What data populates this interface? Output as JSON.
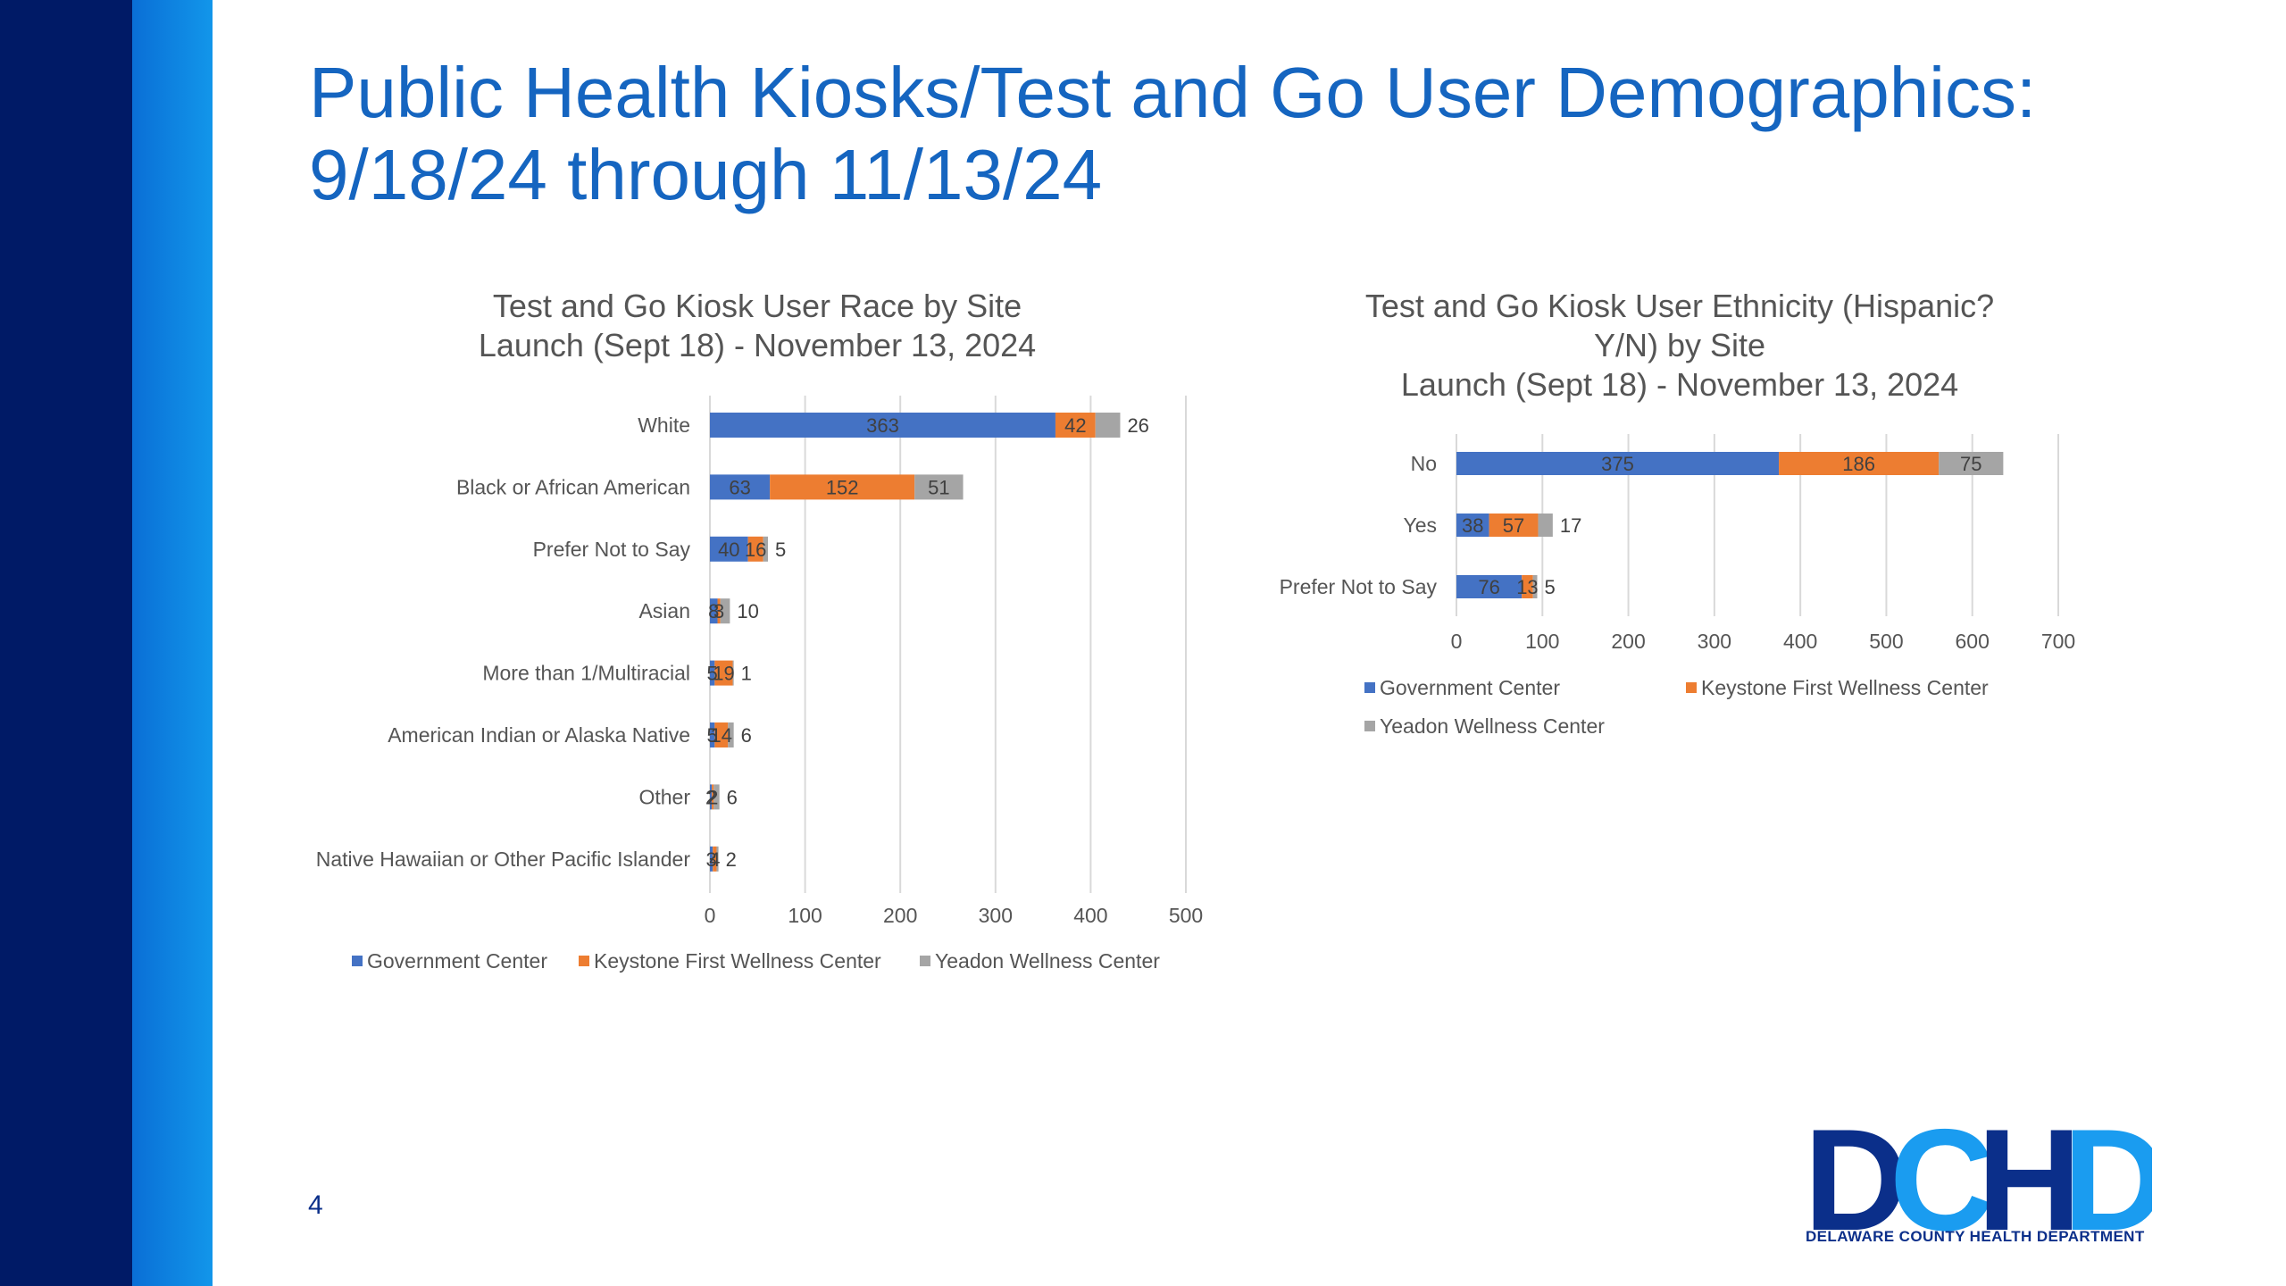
{
  "slide": {
    "title_line1": "Public Health Kiosks/Test and Go User Demographics:",
    "title_line2": "9/18/24 through 11/13/24",
    "page_number": "4"
  },
  "logo": {
    "letters": [
      "D",
      "C",
      "H",
      "D"
    ],
    "subtitle": "DELAWARE COUNTY HEALTH DEPARTMENT"
  },
  "colors": {
    "government": "#4472c4",
    "keystone": "#ed7d31",
    "yeadon": "#a5a5a5",
    "title": "#1565c0",
    "logo_dark": "#0b2f8a",
    "logo_light": "#1a9cf0"
  },
  "chart_data": [
    {
      "type": "bar",
      "orientation": "horizontal",
      "stacked": true,
      "title": [
        "Test and Go Kiosk User Race by Site",
        "Launch (Sept 18) - November 13, 2024"
      ],
      "categories": [
        "White",
        "Black or African American",
        "Prefer Not to Say",
        "Asian",
        "More than 1/Multiracial",
        "American Indian or Alaska Native",
        "Other",
        "Native Hawaiian or Other Pacific Islander"
      ],
      "series": [
        {
          "name": "Government Center",
          "values": [
            363,
            63,
            40,
            8,
            5,
            5,
            2,
            3
          ]
        },
        {
          "name": "Keystone First Wellness Center",
          "values": [
            42,
            152,
            16,
            3,
            19,
            14,
            2,
            4
          ]
        },
        {
          "name": "Yeadon Wellness Center",
          "values": [
            26,
            51,
            5,
            10,
            1,
            6,
            6,
            2
          ]
        }
      ],
      "xlim": [
        0,
        500
      ],
      "xticks": [
        0,
        100,
        200,
        300,
        400,
        500
      ],
      "grid": true,
      "legend": "bottom"
    },
    {
      "type": "bar",
      "orientation": "horizontal",
      "stacked": true,
      "title": [
        "Test and Go Kiosk User Ethnicity (Hispanic?",
        "Y/N) by Site",
        "Launch (Sept 18) - November 13, 2024"
      ],
      "categories": [
        "No",
        "Yes",
        "Prefer Not to Say"
      ],
      "series": [
        {
          "name": "Government Center",
          "values": [
            375,
            38,
            76
          ]
        },
        {
          "name": "Keystone First Wellness Center",
          "values": [
            186,
            57,
            13
          ]
        },
        {
          "name": "Yeadon Wellness Center",
          "values": [
            75,
            17,
            5
          ]
        }
      ],
      "xlim": [
        0,
        700
      ],
      "xticks": [
        0,
        100,
        200,
        300,
        400,
        500,
        600,
        700
      ],
      "grid": true,
      "legend": "bottom"
    }
  ]
}
